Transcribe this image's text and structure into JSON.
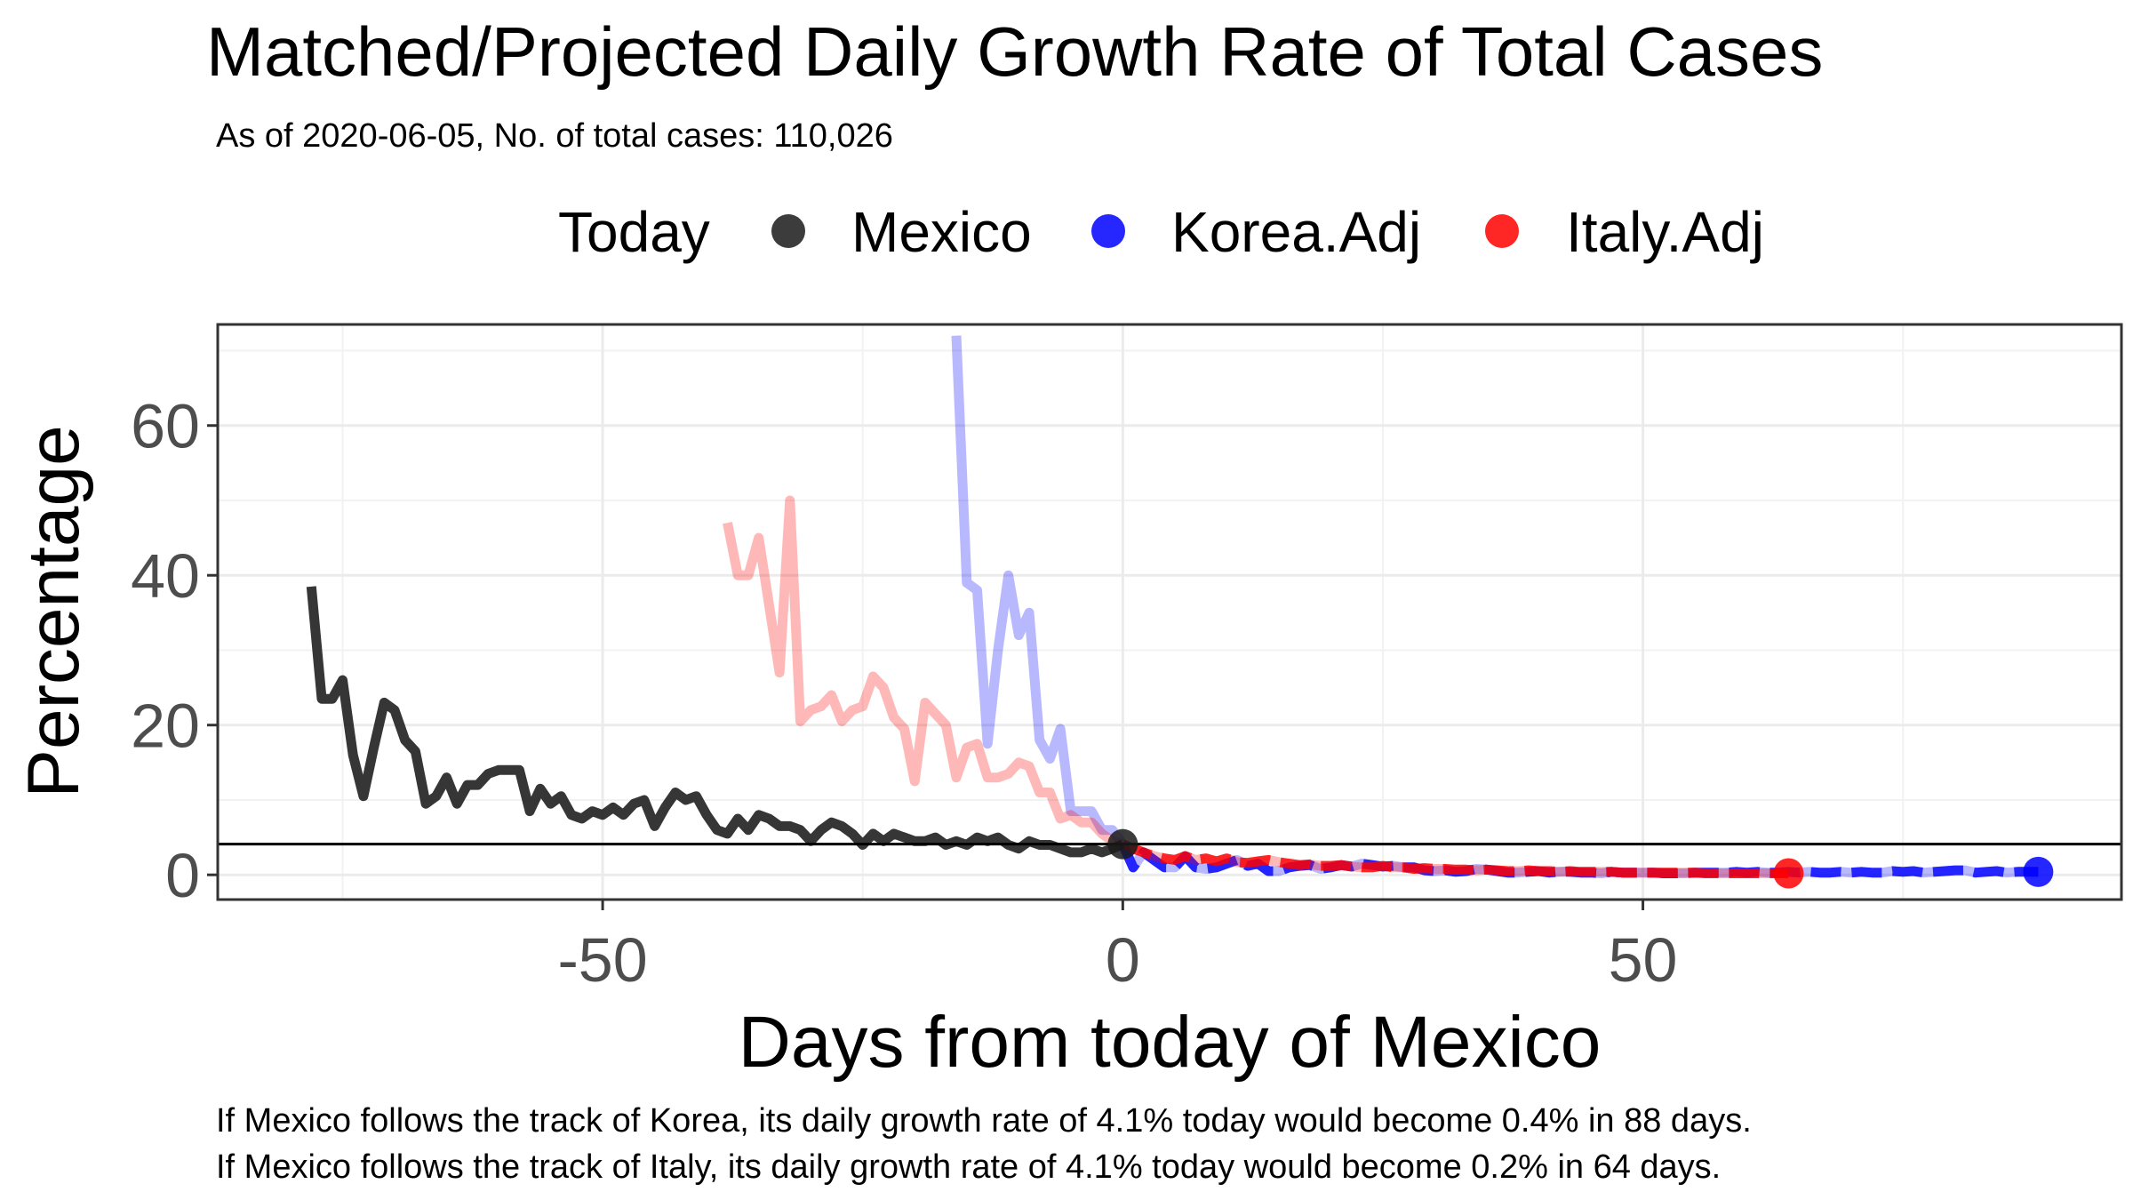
{
  "chart_data": {
    "type": "line",
    "title": "Matched/Projected Daily Growth Rate of Total Cases",
    "subtitle": "As of 2020-06-05, No. of total cases: 110,026",
    "xlabel": "Days from today of Mexico",
    "ylabel": "Percentage",
    "xlim": [
      -87,
      96
    ],
    "ylim": [
      -3.3,
      73.5
    ],
    "x_ticks": [
      -50,
      0,
      50
    ],
    "x_tick_labels": [
      "-50",
      "0",
      "50"
    ],
    "y_ticks": [
      0,
      20,
      40,
      60
    ],
    "y_tick_labels": [
      "0",
      "20",
      "40",
      "60"
    ],
    "grid": true,
    "legend": {
      "title": "Today",
      "position": "top",
      "entries": [
        {
          "label": "Mexico",
          "color": "#1a1a1a"
        },
        {
          "label": "Korea.Adj",
          "color": "#0000ff"
        },
        {
          "label": "Italy.Adj",
          "color": "#ff0000"
        }
      ]
    },
    "reference_line": {
      "y": 4.1
    },
    "series": [
      {
        "name": "Mexico",
        "color": "#1a1a1a",
        "style": "solid",
        "x": [
          -78,
          -77,
          -76,
          -75,
          -74,
          -73,
          -72,
          -71,
          -70,
          -69,
          -68,
          -67,
          -66,
          -65,
          -64,
          -63,
          -62,
          -61,
          -60,
          -59,
          -58,
          -57,
          -56,
          -55,
          -54,
          -53,
          -52,
          -51,
          -50,
          -49,
          -48,
          -47,
          -46,
          -45,
          -44,
          -43,
          -42,
          -41,
          -40,
          -39,
          -38,
          -37,
          -36,
          -35,
          -34,
          -33,
          -32,
          -31,
          -30,
          -29,
          -28,
          -27,
          -26,
          -25,
          -24,
          -23,
          -22,
          -21,
          -20,
          -19,
          -18,
          -17,
          -16,
          -15,
          -14,
          -13,
          -12,
          -11,
          -10,
          -9,
          -8,
          -7,
          -6,
          -5,
          -4,
          -3,
          -2,
          -1,
          0
        ],
        "values": [
          38.5,
          23.5,
          23.5,
          26,
          16,
          10.5,
          17,
          23,
          22,
          18,
          16.5,
          9.5,
          10.5,
          13,
          9.5,
          12,
          12,
          13.5,
          14,
          14,
          14,
          8.5,
          11.5,
          9.5,
          10.5,
          8,
          7.5,
          8.5,
          8,
          9,
          8,
          9.5,
          10,
          6.5,
          9,
          11,
          10,
          10.5,
          8,
          6,
          5.5,
          7.5,
          6,
          8,
          7.5,
          6.5,
          6.5,
          6,
          4.5,
          6,
          7,
          6.5,
          5.5,
          4,
          5.5,
          4.5,
          5.5,
          5,
          4.5,
          4.5,
          5,
          4,
          4.5,
          4,
          5,
          4.5,
          5,
          4,
          3.5,
          4.5,
          4,
          4,
          3.5,
          3,
          3,
          3.5,
          3,
          3.5,
          4.1
        ]
      },
      {
        "name": "Korea.Adj",
        "color": "#0000ff",
        "style": "solid",
        "x": [
          -16,
          -15,
          -14,
          -13,
          -12,
          -11,
          -10,
          -9,
          -8,
          -7,
          -6,
          -5,
          -4,
          -3,
          -2,
          -1,
          0
        ],
        "values": [
          72,
          39,
          38,
          17.5,
          30,
          40,
          32,
          35,
          18,
          15.5,
          19.5,
          8.5,
          8.5,
          8.5,
          6,
          6,
          4.1
        ]
      },
      {
        "name": "Korea.Adj",
        "color": "#0000ff",
        "style": "dashed",
        "x": [
          0,
          1,
          2,
          3,
          4,
          5,
          6,
          7,
          8,
          9,
          10,
          11,
          12,
          13,
          14,
          15,
          16,
          17,
          18,
          19,
          20,
          21,
          22,
          23,
          24,
          25,
          26,
          27,
          28,
          29,
          30,
          31,
          32,
          33,
          34,
          35,
          36,
          37,
          38,
          39,
          40,
          41,
          42,
          43,
          44,
          45,
          46,
          47,
          48,
          49,
          50,
          51,
          52,
          53,
          54,
          55,
          56,
          57,
          58,
          59,
          60,
          61,
          62,
          63,
          64,
          65,
          66,
          67,
          68,
          69,
          70,
          71,
          72,
          73,
          74,
          75,
          76,
          77,
          78,
          79,
          80,
          81,
          82,
          83,
          84,
          85,
          86,
          87,
          88
        ],
        "values": [
          4.1,
          1,
          3,
          2,
          1,
          1,
          2.5,
          1,
          0.8,
          1,
          1.5,
          2,
          1.2,
          1.5,
          0.5,
          0.5,
          1,
          1.2,
          1.3,
          0.8,
          1,
          1.3,
          1.1,
          1.5,
          1.3,
          1.1,
          1.2,
          1,
          1,
          0.6,
          0.5,
          0.6,
          0.4,
          0.5,
          0.8,
          0.7,
          0.5,
          0.3,
          0.3,
          0.4,
          0.5,
          0.3,
          0.4,
          0.4,
          0.3,
          0.3,
          0.2,
          0.4,
          0.3,
          0.3,
          0.3,
          0.3,
          0.2,
          0.2,
          0.2,
          0.3,
          0.3,
          0.3,
          0.3,
          0.4,
          0.3,
          0.4,
          0.3,
          0.3,
          0.4,
          0.3,
          0.4,
          0.3,
          0.3,
          0.4,
          0.3,
          0.4,
          0.3,
          0.3,
          0.5,
          0.4,
          0.5,
          0.3,
          0.4,
          0.5,
          0.6,
          0.6,
          0.3,
          0.4,
          0.5,
          0.3,
          0.4,
          0.4,
          0.4
        ]
      },
      {
        "name": "Italy.Adj",
        "color": "#ff0000",
        "style": "solid",
        "x": [
          -38,
          -37,
          -36,
          -35,
          -34,
          -33,
          -32,
          -31,
          -30,
          -29,
          -28,
          -27,
          -26,
          -25,
          -24,
          -23,
          -22,
          -21,
          -20,
          -19,
          -18,
          -17,
          -16,
          -15,
          -14,
          -13,
          -12,
          -11,
          -10,
          -9,
          -8,
          -7,
          -6,
          -5,
          -4,
          -3,
          -2,
          -1,
          0
        ],
        "values": [
          47,
          40,
          40,
          45,
          36,
          27,
          50,
          20.5,
          22,
          22.5,
          24,
          20.5,
          22,
          22.5,
          26.5,
          25,
          21,
          19.5,
          12.5,
          23,
          21.5,
          20,
          13,
          17,
          17.5,
          13,
          13,
          13.5,
          15,
          14.5,
          11,
          11,
          7.5,
          8,
          7,
          7,
          5.5,
          4.5,
          4.1
        ]
      },
      {
        "name": "Italy.Adj",
        "color": "#ff0000",
        "style": "dashed",
        "x": [
          0,
          1,
          2,
          3,
          4,
          5,
          6,
          7,
          8,
          9,
          10,
          11,
          12,
          13,
          14,
          15,
          16,
          17,
          18,
          19,
          20,
          21,
          22,
          23,
          24,
          25,
          26,
          27,
          28,
          29,
          30,
          31,
          32,
          33,
          34,
          35,
          36,
          37,
          38,
          39,
          40,
          41,
          42,
          43,
          44,
          45,
          46,
          47,
          48,
          49,
          50,
          51,
          52,
          53,
          54,
          55,
          56,
          57,
          58,
          59,
          60,
          61,
          62,
          63,
          64
        ],
        "values": [
          4.1,
          3.5,
          3,
          2.5,
          2.2,
          2,
          2.5,
          2,
          2.2,
          1.8,
          2.2,
          1.7,
          1.6,
          1.8,
          2,
          1.7,
          1.5,
          1.3,
          1.4,
          1.2,
          1.2,
          1.3,
          1.1,
          1,
          1,
          1.2,
          1,
          1,
          0.8,
          0.9,
          0.8,
          0.8,
          0.7,
          0.7,
          0.6,
          0.7,
          0.6,
          0.5,
          0.5,
          0.6,
          0.5,
          0.5,
          0.4,
          0.5,
          0.4,
          0.4,
          0.4,
          0.4,
          0.3,
          0.3,
          0.3,
          0.3,
          0.3,
          0.3,
          0.3,
          0.3,
          0.2,
          0.2,
          0.2,
          0.2,
          0.2,
          0.2,
          0.2,
          0.2,
          0.2
        ]
      }
    ],
    "endpoints": [
      {
        "series": "Mexico",
        "x": 0,
        "y": 4.1,
        "color": "#1a1a1a"
      },
      {
        "series": "Korea.Adj",
        "x": 88,
        "y": 0.4,
        "color": "#0000ff"
      },
      {
        "series": "Italy.Adj",
        "x": 64,
        "y": 0.2,
        "color": "#ff0000"
      }
    ],
    "captions": [
      "If Mexico follows the track of Korea, its daily growth rate of 4.1% today would become 0.4% in 88 days.",
      "If Mexico follows the track of Italy, its daily growth rate of 4.1% today would become 0.2% in 64 days."
    ]
  }
}
